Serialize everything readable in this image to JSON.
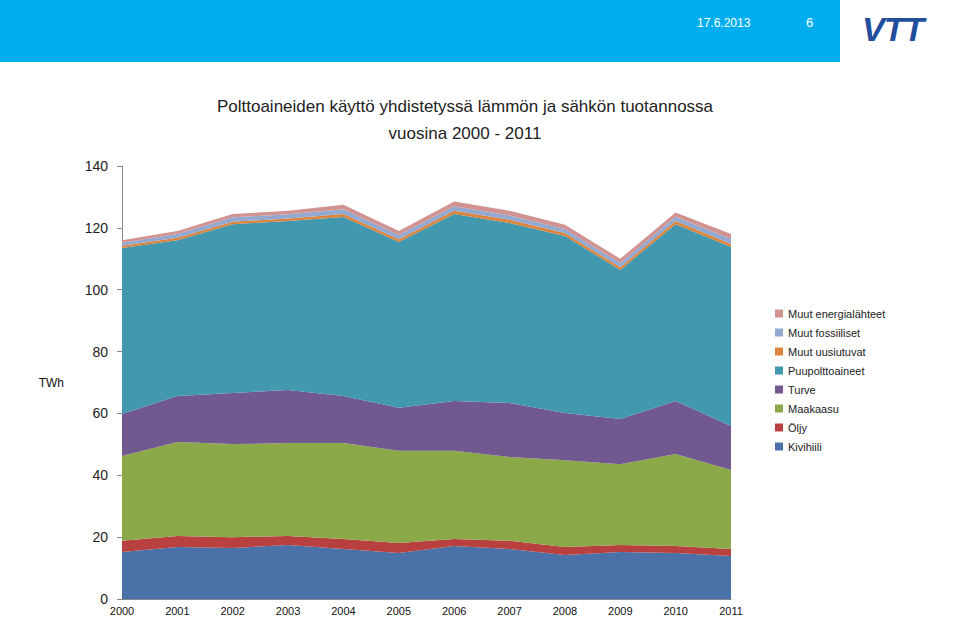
{
  "header": {
    "date": "17.6.2013",
    "page": "6",
    "logo": "VTT"
  },
  "chart_data": {
    "type": "area",
    "stacked": true,
    "title": "Polttoaineiden käyttö yhdistetyssä lämmön ja sähkön tuotannossa",
    "subtitle": "vuosina 2000 - 2011",
    "y_label": "TWh",
    "categories": [
      "2000",
      "2001",
      "2002",
      "2003",
      "2004",
      "2005",
      "2006",
      "2007",
      "2008",
      "2009",
      "2010",
      "2011"
    ],
    "ylim": [
      0,
      140
    ],
    "yticks": [
      0,
      20,
      40,
      60,
      80,
      100,
      120,
      140
    ],
    "grid": false,
    "legend": "right",
    "series": [
      {
        "name": "Kivihiili",
        "color": "#4a71a8",
        "values": [
          15.2,
          16.8,
          16.5,
          17.5,
          16.2,
          14.9,
          17.1,
          16.2,
          14.2,
          15.2,
          14.9,
          13.9
        ]
      },
      {
        "name": "Öljy",
        "color": "#b8413f",
        "values": [
          3.6,
          3.6,
          3.5,
          2.9,
          3.2,
          3.2,
          2.3,
          2.6,
          2.6,
          2.3,
          2.2,
          2.3
        ]
      },
      {
        "name": "Maakaasu",
        "color": "#8ca94a",
        "values": [
          27.4,
          30.4,
          30.1,
          30.0,
          31.0,
          29.8,
          28.5,
          27.1,
          28.1,
          26.1,
          29.8,
          25.5
        ]
      },
      {
        "name": "Turve",
        "color": "#71588f",
        "values": [
          13.6,
          14.8,
          16.5,
          17.2,
          15.2,
          13.9,
          16.1,
          17.5,
          15.2,
          14.6,
          17.1,
          14.2
        ]
      },
      {
        "name": "Puupolttoaineet",
        "color": "#4198af",
        "values": [
          53.7,
          50.4,
          54.6,
          54.6,
          57.9,
          53.6,
          60.5,
          58.2,
          57.3,
          48.2,
          57.2,
          57.9
        ]
      },
      {
        "name": "Muut uusiutuvat",
        "color": "#db843d",
        "values": [
          0.7,
          0.8,
          0.8,
          0.8,
          1.0,
          0.9,
          1.0,
          1.0,
          0.9,
          0.9,
          1.0,
          1.0
        ]
      },
      {
        "name": "Muut fossiiliset",
        "color": "#93a9cf",
        "values": [
          1.0,
          1.2,
          1.4,
          1.4,
          1.5,
          1.4,
          1.5,
          1.4,
          1.3,
          1.3,
          1.4,
          1.6
        ]
      },
      {
        "name": "Muut energialähteet",
        "color": "#d19392",
        "values": [
          0.8,
          1.0,
          1.1,
          1.1,
          1.5,
          1.3,
          1.5,
          1.5,
          1.4,
          1.4,
          1.4,
          1.6
        ]
      }
    ]
  }
}
